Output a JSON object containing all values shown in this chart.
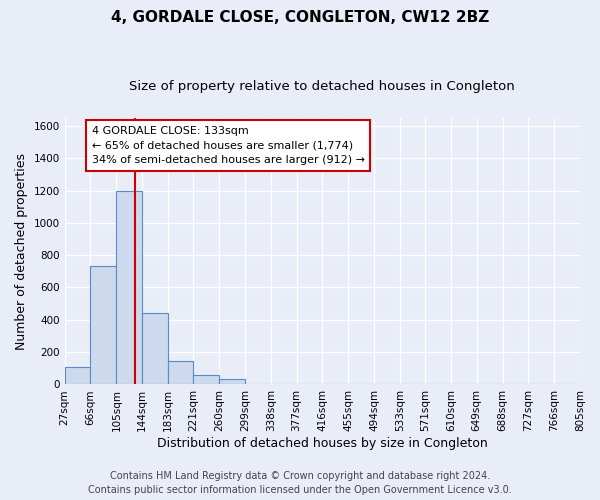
{
  "title": "4, GORDALE CLOSE, CONGLETON, CW12 2BZ",
  "subtitle": "Size of property relative to detached houses in Congleton",
  "xlabel": "Distribution of detached houses by size in Congleton",
  "ylabel": "Number of detached properties",
  "bin_edges": [
    27,
    66,
    105,
    144,
    183,
    221,
    260,
    299,
    338,
    377,
    416,
    455,
    494,
    533,
    571,
    610,
    649,
    688,
    727,
    766,
    805
  ],
  "bin_labels": [
    "27sqm",
    "66sqm",
    "105sqm",
    "144sqm",
    "183sqm",
    "221sqm",
    "260sqm",
    "299sqm",
    "338sqm",
    "377sqm",
    "416sqm",
    "455sqm",
    "494sqm",
    "533sqm",
    "571sqm",
    "610sqm",
    "649sqm",
    "688sqm",
    "727sqm",
    "766sqm",
    "805sqm"
  ],
  "bar_heights": [
    110,
    730,
    1200,
    440,
    145,
    60,
    35,
    0,
    0,
    0,
    0,
    0,
    0,
    0,
    0,
    0,
    0,
    0,
    0,
    0
  ],
  "bar_color": "#cdd9ed",
  "bar_edge_color": "#5b8ac4",
  "property_line_x": 133,
  "property_line_color": "#cc0000",
  "ylim": [
    0,
    1650
  ],
  "yticks": [
    0,
    200,
    400,
    600,
    800,
    1000,
    1200,
    1400,
    1600
  ],
  "ann_line1": "4 GORDALE CLOSE: 133sqm",
  "ann_line2": "← 65% of detached houses are smaller (1,774)",
  "ann_line3": "34% of semi-detached houses are larger (912) →",
  "footer_line1": "Contains HM Land Registry data © Crown copyright and database right 2024.",
  "footer_line2": "Contains public sector information licensed under the Open Government Licence v3.0.",
  "bg_color": "#e8edf8",
  "plot_bg_color": "#e8edf8",
  "grid_color": "#ffffff",
  "title_fontsize": 11,
  "subtitle_fontsize": 9.5,
  "axis_label_fontsize": 9,
  "tick_fontsize": 7.5,
  "footer_fontsize": 7
}
